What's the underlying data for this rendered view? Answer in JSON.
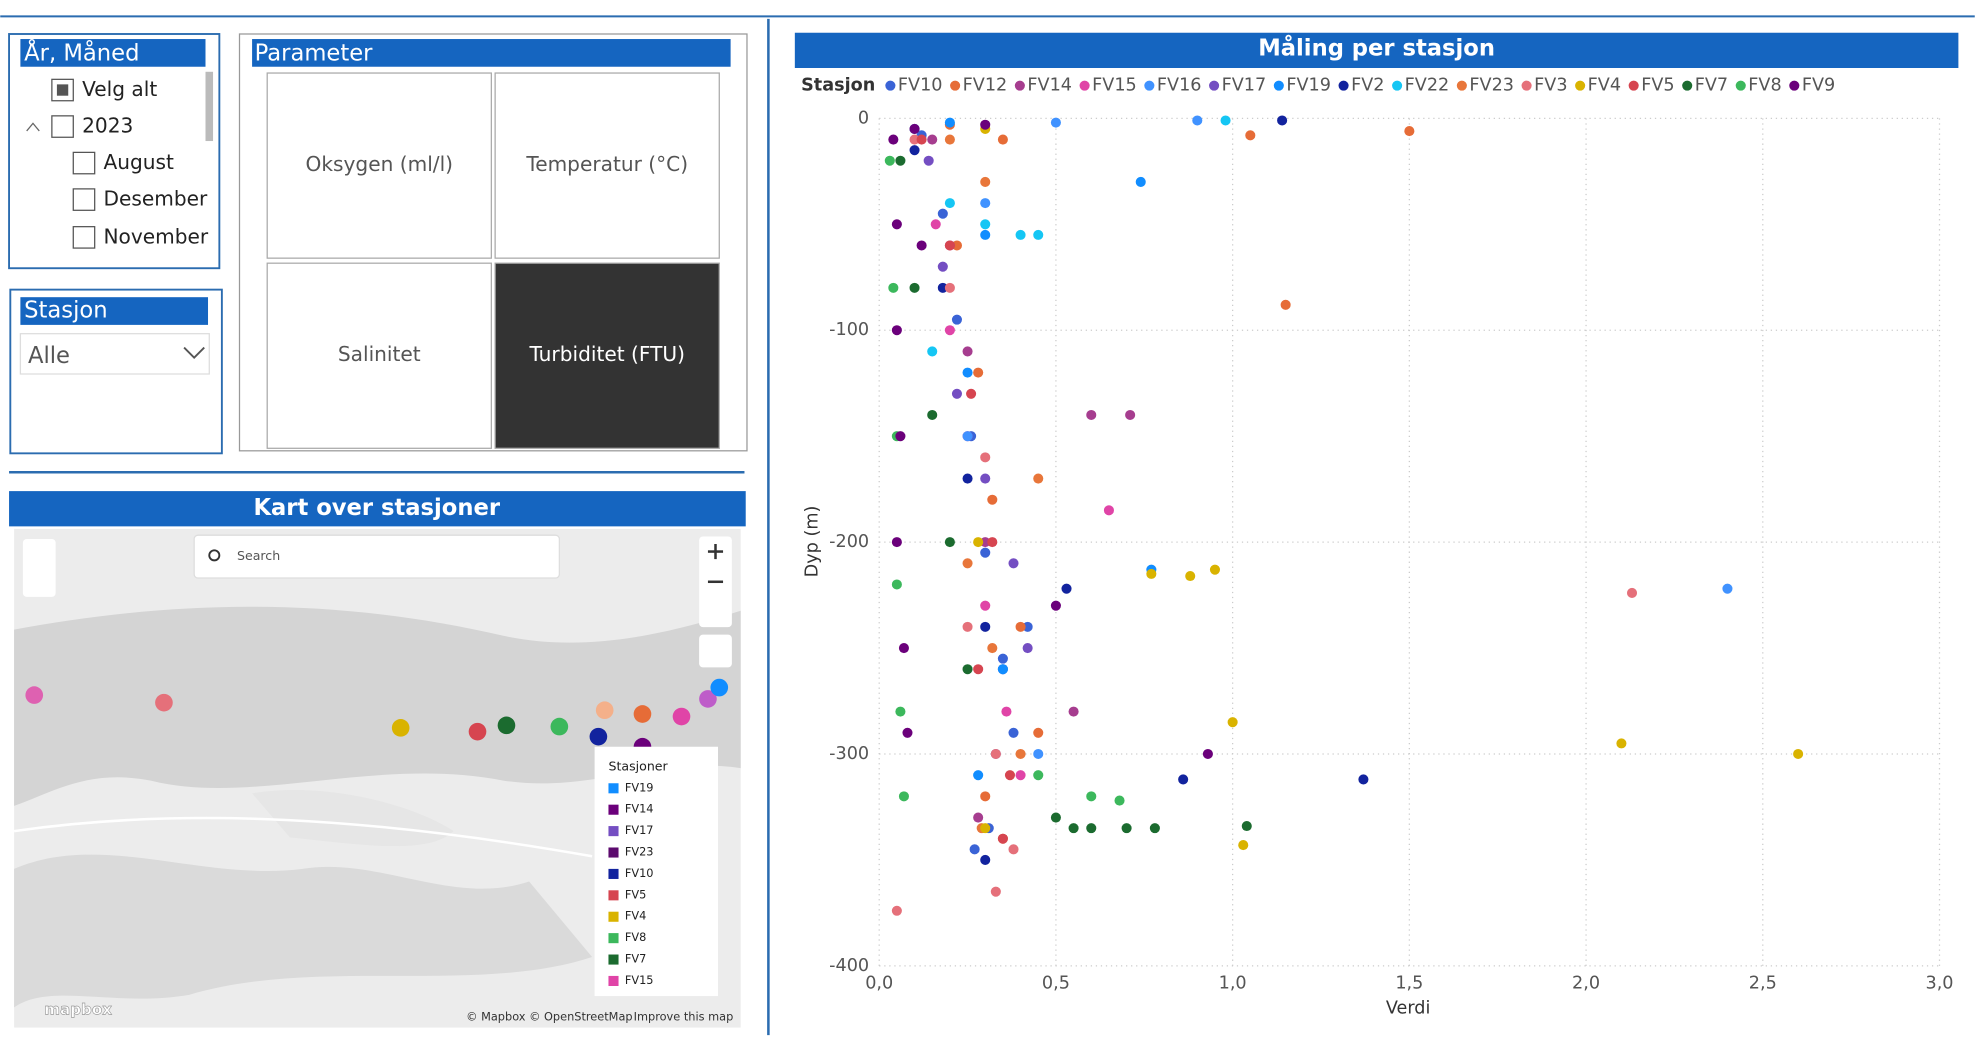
{
  "slicer_month": {
    "title": "År, Måned",
    "items": [
      "Velg alt",
      "2023",
      "August",
      "Desember",
      "November"
    ]
  },
  "slicer_station": {
    "title": "Stasjon",
    "value": "Alle"
  },
  "parameter": {
    "title": "Parameter",
    "buttons": [
      "Oksygen (ml/l)",
      "Temperatur (°C)",
      "Salinitet",
      "Turbiditet (FTU)"
    ],
    "selected": 3
  },
  "map": {
    "title": "Kart over stasjoner",
    "search": "Search",
    "legend_title": "Stasjoner",
    "legend": [
      {
        "name": "FV19",
        "color": "#118dff"
      },
      {
        "name": "FV14",
        "color": "#6b007b"
      },
      {
        "name": "FV17",
        "color": "#744ec2"
      },
      {
        "name": "FV23",
        "color": "#5c0a6e"
      },
      {
        "name": "FV10",
        "color": "#12239e"
      },
      {
        "name": "FV5",
        "color": "#d64550"
      },
      {
        "name": "FV4",
        "color": "#d9b300"
      },
      {
        "name": "FV8",
        "color": "#3cb85c"
      },
      {
        "name": "FV7",
        "color": "#1b6b2f"
      },
      {
        "name": "FV15",
        "color": "#e044a7"
      }
    ],
    "attribution": "© Mapbox © OpenStreetMap",
    "improve": "Improve this map",
    "logo": "mapbox"
  },
  "chart_data": {
    "type": "scatter",
    "title": "Måling per stasjon",
    "legend_title": "Stasjon",
    "xlabel": "Verdi",
    "ylabel": "Dyp (m)",
    "xlim": [
      0,
      3
    ],
    "ylim": [
      -400,
      0
    ],
    "xticks": [
      {
        "value": 0,
        "label": "0,0"
      },
      {
        "value": 0.5,
        "label": "0,5"
      },
      {
        "value": 1,
        "label": "1,0"
      },
      {
        "value": 1.5,
        "label": "1,5"
      },
      {
        "value": 2,
        "label": "2,0"
      },
      {
        "value": 2.5,
        "label": "2,5"
      },
      {
        "value": 3,
        "label": "3,0"
      }
    ],
    "yticks": [
      -400,
      -300,
      -200,
      -100,
      0
    ],
    "grid": true,
    "series": [
      {
        "name": "FV10",
        "color": "#3a63d6",
        "x": [
          0.12,
          0.18,
          0.22,
          0.26,
          0.3,
          0.35,
          0.38,
          0.31,
          0.27,
          0.42
        ],
        "values": [
          -8,
          -45,
          -95,
          -150,
          -205,
          -255,
          -290,
          -335,
          -345,
          -240
        ]
      },
      {
        "name": "FV12",
        "color": "#e66c37",
        "x": [
          0.2,
          0.35,
          1.05,
          1.5,
          1.15,
          0.28,
          0.32,
          0.4,
          0.45,
          0.3,
          0.22
        ],
        "values": [
          -3,
          -10,
          -8,
          -6,
          -88,
          -120,
          -180,
          -240,
          -290,
          -320,
          -60
        ]
      },
      {
        "name": "FV14",
        "color": "#a63d8f",
        "x": [
          0.15,
          0.2,
          0.25,
          0.6,
          0.71,
          0.3,
          0.35,
          0.55,
          0.28
        ],
        "values": [
          -10,
          -60,
          -110,
          -140,
          -140,
          -200,
          -260,
          -280,
          -330
        ]
      },
      {
        "name": "FV15",
        "color": "#e044a7",
        "x": [
          0.1,
          0.16,
          0.2,
          0.25,
          0.65,
          0.3,
          0.36,
          0.4
        ],
        "values": [
          -5,
          -50,
          -100,
          -150,
          -185,
          -230,
          -280,
          -310
        ]
      },
      {
        "name": "FV16",
        "color": "#4092ff",
        "x": [
          0.5,
          0.9,
          0.3,
          0.25,
          2.4,
          0.35,
          0.45
        ],
        "values": [
          -2,
          -1,
          -40,
          -150,
          -222,
          -260,
          -300
        ]
      },
      {
        "name": "FV17",
        "color": "#744ec2",
        "x": [
          0.14,
          0.18,
          0.22,
          0.3,
          0.38,
          0.42,
          0.33
        ],
        "values": [
          -20,
          -70,
          -130,
          -170,
          -210,
          -250,
          -300
        ]
      },
      {
        "name": "FV19",
        "color": "#118dff",
        "x": [
          0.2,
          0.74,
          0.3,
          0.25,
          0.77,
          0.35,
          0.28
        ],
        "values": [
          -2,
          -30,
          -55,
          -120,
          -213,
          -260,
          -310
        ]
      },
      {
        "name": "FV2",
        "color": "#12239e",
        "x": [
          0.1,
          1.14,
          0.18,
          0.25,
          0.53,
          0.3,
          0.86,
          1.37,
          0.3
        ],
        "values": [
          -15,
          -1,
          -80,
          -170,
          -222,
          -240,
          -312,
          -312,
          -350
        ]
      },
      {
        "name": "FV22",
        "color": "#15c6f4",
        "x": [
          0.1,
          0.98,
          0.2,
          0.3,
          0.4,
          0.45,
          0.15
        ],
        "values": [
          -5,
          -1,
          -40,
          -50,
          -55,
          -55,
          -110
        ]
      },
      {
        "name": "FV23",
        "color": "#e8763a",
        "x": [
          0.2,
          0.3,
          0.45,
          0.25,
          0.32,
          0.4,
          0.29,
          0.35
        ],
        "values": [
          -10,
          -30,
          -170,
          -210,
          -250,
          -300,
          -335,
          -340
        ]
      },
      {
        "name": "FV3",
        "color": "#e5707a",
        "x": [
          0.1,
          0.2,
          0.3,
          0.25,
          2.13,
          0.33,
          0.38,
          0.05,
          0.33
        ],
        "values": [
          -10,
          -80,
          -160,
          -240,
          -224,
          -300,
          -345,
          -374,
          -365
        ]
      },
      {
        "name": "FV4",
        "color": "#d9b300",
        "x": [
          0.3,
          0.28,
          0.77,
          0.88,
          0.95,
          1.0,
          1.03,
          2.1,
          2.6,
          0.3
        ],
        "values": [
          -5,
          -200,
          -215,
          -216,
          -213,
          -285,
          -343,
          -295,
          -300,
          -335
        ]
      },
      {
        "name": "FV5",
        "color": "#d64550",
        "x": [
          0.12,
          0.2,
          0.26,
          0.32,
          0.28,
          0.37,
          0.35
        ],
        "values": [
          -10,
          -60,
          -130,
          -200,
          -260,
          -310,
          -340
        ]
      },
      {
        "name": "FV7",
        "color": "#1b6b2f",
        "x": [
          0.06,
          0.1,
          0.15,
          0.2,
          0.25,
          0.55,
          0.6,
          0.7,
          0.78,
          1.04,
          0.5
        ],
        "values": [
          -20,
          -80,
          -140,
          -200,
          -260,
          -335,
          -335,
          -335,
          -335,
          -334,
          -330
        ]
      },
      {
        "name": "FV8",
        "color": "#3cb85c",
        "x": [
          0.03,
          0.04,
          0.05,
          0.05,
          0.06,
          0.07,
          0.45,
          0.6,
          0.68
        ],
        "values": [
          -20,
          -80,
          -150,
          -220,
          -280,
          -320,
          -310,
          -320,
          -322
        ]
      },
      {
        "name": "FV9",
        "color": "#6b007b",
        "x": [
          0.04,
          0.05,
          0.05,
          0.06,
          0.05,
          0.07,
          0.08,
          0.1,
          0.12,
          0.3,
          0.93,
          0.5
        ],
        "values": [
          -10,
          -50,
          -100,
          -150,
          -200,
          -250,
          -290,
          -5,
          -60,
          -3,
          -300,
          -230
        ]
      }
    ]
  }
}
